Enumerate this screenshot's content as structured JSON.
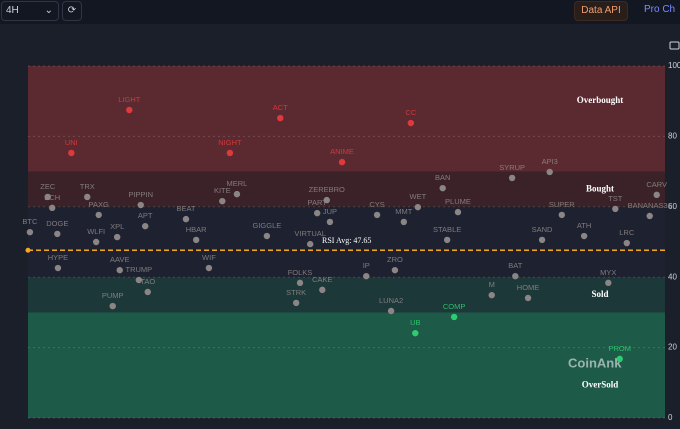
{
  "toolbar": {
    "interval": "4H",
    "data_api": "Data API",
    "pro": "Pro Ch"
  },
  "chart_data": {
    "type": "scatter",
    "watermark": "CoinAnk",
    "xlim": [
      0,
      100
    ],
    "ylim": [
      0,
      100
    ],
    "yticks": [
      0,
      20,
      40,
      60,
      80,
      100
    ],
    "grid": true,
    "zones": [
      {
        "from": 70,
        "to": 100,
        "label": "Overbought",
        "fill": "#5b2a30",
        "point_color": "#e0393c"
      },
      {
        "from": 60,
        "to": 70,
        "label": "Bought",
        "fill": "#3b2229",
        "point_color": "#8c8585"
      },
      {
        "from": 40,
        "to": 60,
        "fill": "#1d2130",
        "point_color": "#8c8585"
      },
      {
        "from": 30,
        "to": 40,
        "label": "Sold",
        "fill": "#1d3838",
        "point_color": "#8c8585"
      },
      {
        "from": 0,
        "to": 30,
        "label": "OverSold",
        "fill": "#1e5a48",
        "point_color": "#2ecc71"
      }
    ],
    "avg": 47.65,
    "avg_label": "RSI Avg: 47.65",
    "avg_color": "#f5a623",
    "points": [
      {
        "name": "LIGHT",
        "x": 15.9,
        "y": 87.5
      },
      {
        "name": "ACT",
        "x": 39.6,
        "y": 85.2
      },
      {
        "name": "CC",
        "x": 60.1,
        "y": 83.8
      },
      {
        "name": "UNI",
        "x": 6.8,
        "y": 75.3
      },
      {
        "name": "NIGHT",
        "x": 31.7,
        "y": 75.3
      },
      {
        "name": "ANIME",
        "x": 49.3,
        "y": 72.7
      },
      {
        "name": "SYRUP",
        "x": 76,
        "y": 68.2
      },
      {
        "name": "API3",
        "x": 81.9,
        "y": 69.9
      },
      {
        "name": "BAN",
        "x": 65.1,
        "y": 65.3
      },
      {
        "name": "ZEC",
        "x": 3.1,
        "y": 62.8
      },
      {
        "name": "TRX",
        "x": 9.3,
        "y": 62.8
      },
      {
        "name": "MERL",
        "x": 32.8,
        "y": 63.6
      },
      {
        "name": "BCH",
        "x": 3.8,
        "y": 59.7
      },
      {
        "name": "PAXG",
        "x": 11.1,
        "y": 57.7
      },
      {
        "name": "PIPPIN",
        "x": 17.7,
        "y": 60.5
      },
      {
        "name": "APT",
        "x": 18.4,
        "y": 54.5
      },
      {
        "name": "KITE",
        "x": 30.5,
        "y": 61.6
      },
      {
        "name": "ZEREBRO",
        "x": 46.9,
        "y": 61.9
      },
      {
        "name": "PART",
        "x": 45.4,
        "y": 58.2
      },
      {
        "name": "CYS",
        "x": 54.8,
        "y": 57.7
      },
      {
        "name": "WET",
        "x": 61.2,
        "y": 59.9
      },
      {
        "name": "MMT",
        "x": 59,
        "y": 55.7
      },
      {
        "name": "PLUME",
        "x": 67.5,
        "y": 58.5
      },
      {
        "name": "SUPER",
        "x": 83.8,
        "y": 57.7
      },
      {
        "name": "BANANAS31",
        "x": 97.6,
        "y": 57.4
      },
      {
        "name": "CARV",
        "x": 98.7,
        "y": 63.4
      },
      {
        "name": "TST",
        "x": 92.2,
        "y": 59.4
      },
      {
        "name": "BTC",
        "x": 0.3,
        "y": 52.8
      },
      {
        "name": "DOGE",
        "x": 4.6,
        "y": 52.3
      },
      {
        "name": "BEAT",
        "x": 24.8,
        "y": 56.5
      },
      {
        "name": "GIGGLE",
        "x": 37.5,
        "y": 51.7
      },
      {
        "name": "HBAR",
        "x": 26.4,
        "y": 50.6
      },
      {
        "name": "STABLE",
        "x": 65.8,
        "y": 50.6
      },
      {
        "name": "SAND",
        "x": 80.7,
        "y": 50.6
      },
      {
        "name": "ATH",
        "x": 87.3,
        "y": 51.7
      },
      {
        "name": "LRC",
        "x": 94,
        "y": 49.7
      },
      {
        "name": "WLFI",
        "x": 10.7,
        "y": 50
      },
      {
        "name": "XPL",
        "x": 14,
        "y": 51.4
      },
      {
        "name": "VIRTUAL",
        "x": 44.3,
        "y": 49.4
      },
      {
        "name": "JUP",
        "x": 47.4,
        "y": 55.7
      },
      {
        "name": "HYPE",
        "x": 4.7,
        "y": 42.6
      },
      {
        "name": "AAVE",
        "x": 14.4,
        "y": 42
      },
      {
        "name": "TRUMP",
        "x": 17.4,
        "y": 39.2
      },
      {
        "name": "WIF",
        "x": 28.4,
        "y": 42.6
      },
      {
        "name": "ZRO",
        "x": 57.6,
        "y": 42
      },
      {
        "name": "IP",
        "x": 53.1,
        "y": 40.3
      },
      {
        "name": "BAT",
        "x": 76.5,
        "y": 40.3
      },
      {
        "name": "FOLKS",
        "x": 42.7,
        "y": 38.4
      },
      {
        "name": "CAKE",
        "x": 46.2,
        "y": 36.4
      },
      {
        "name": "MYX",
        "x": 91.1,
        "y": 38.4
      },
      {
        "name": "TAO",
        "x": 18.8,
        "y": 35.8
      },
      {
        "name": "PUMP",
        "x": 13.3,
        "y": 31.8
      },
      {
        "name": "STRK",
        "x": 42.1,
        "y": 32.7
      },
      {
        "name": "LUNA2",
        "x": 57,
        "y": 30.4
      },
      {
        "name": "M",
        "x": 72.8,
        "y": 34.9
      },
      {
        "name": "HOME",
        "x": 78.5,
        "y": 34.1
      },
      {
        "name": "COMP",
        "x": 66.9,
        "y": 28.7
      },
      {
        "name": "UB",
        "x": 60.8,
        "y": 24.1
      },
      {
        "name": "PROM",
        "x": 92.9,
        "y": 16.8
      }
    ]
  }
}
